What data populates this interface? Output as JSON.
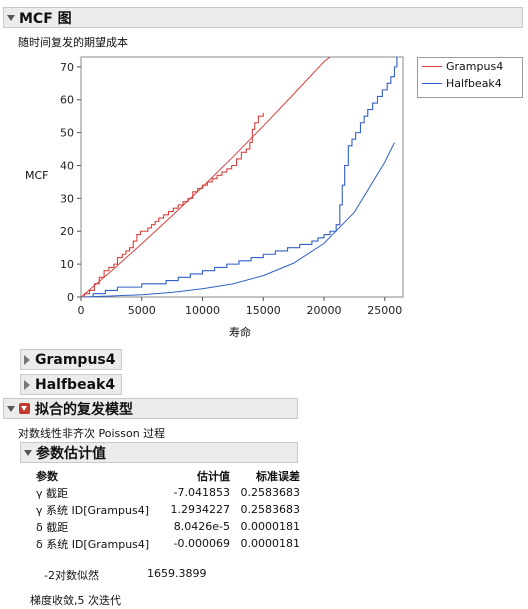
{
  "mcf_section": {
    "title": "MCF 图",
    "subtitle": "随时间复发的期望成本",
    "y_axis_label": "MCF",
    "x_axis_label": "寿命"
  },
  "legend": {
    "items": [
      {
        "label": "Grampus4",
        "color": "#d94040"
      },
      {
        "label": "Halfbeak4",
        "color": "#3060c8"
      }
    ]
  },
  "sections": {
    "grampus": "Grampus4",
    "halfbeak": "Halfbeak4",
    "fitted_model": "拟合的复发模型",
    "model_desc": "对数线性非齐次 Poisson 过程",
    "param_estimates": "参数估计值"
  },
  "param_table": {
    "headers": [
      "参数",
      "估计值",
      "标准误差"
    ],
    "rows": [
      {
        "param": "γ 截距",
        "estimate": "-7.041853",
        "stderr": "0.2583683"
      },
      {
        "param": "γ 系统 ID[Grampus4]",
        "estimate": "1.2934227",
        "stderr": "0.2583683"
      },
      {
        "param": "δ 截距",
        "estimate": "8.0426e-5",
        "stderr": "0.0000181"
      },
      {
        "param": "δ 系统 ID[Grampus4]",
        "estimate": "-0.000069",
        "stderr": "0.0000181"
      }
    ]
  },
  "loglik": {
    "label": "-2对数似然",
    "value": "1659.3899"
  },
  "convergence": "梯度收敛,5 次迭代",
  "chart_data": {
    "type": "line",
    "title": "",
    "xlabel": "寿命",
    "ylabel": "MCF",
    "xlim": [
      0,
      26500
    ],
    "ylim": [
      0,
      73
    ],
    "x_ticks": [
      0,
      5000,
      10000,
      15000,
      20000,
      25000
    ],
    "y_ticks": [
      0,
      10,
      20,
      30,
      40,
      50,
      60,
      70
    ],
    "grid": false,
    "legend_position": "right",
    "series": [
      {
        "name": "Grampus4",
        "kind": "step",
        "color": "#d94040",
        "x": [
          0,
          300,
          700,
          1100,
          1500,
          1900,
          2300,
          2700,
          3000,
          3400,
          3700,
          4000,
          4300,
          4600,
          4900,
          5200,
          5500,
          5800,
          6100,
          6400,
          6800,
          7200,
          7600,
          8000,
          8400,
          8800,
          9200,
          9600,
          10000,
          10400,
          10800,
          11200,
          11600,
          12000,
          12400,
          12800,
          13200,
          13600,
          13900,
          14100,
          14300,
          14600,
          15000
        ],
        "y": [
          0,
          1,
          2,
          4,
          6,
          8,
          9,
          10,
          12,
          13,
          14,
          15,
          17,
          19,
          20,
          20,
          21,
          22,
          23,
          24,
          25,
          26,
          27,
          28,
          29,
          30,
          32,
          33,
          34,
          35,
          36,
          37,
          38,
          39,
          40,
          42,
          44,
          45,
          47,
          51,
          53,
          55,
          56
        ]
      },
      {
        "name": "Halfbeak4",
        "kind": "step",
        "color": "#3060c8",
        "x": [
          0,
          1000,
          2000,
          3000,
          5000,
          7000,
          8000,
          9000,
          10000,
          11000,
          12000,
          13000,
          14000,
          15000,
          16000,
          17000,
          18000,
          19000,
          19500,
          20000,
          20500,
          21000,
          21300,
          21500,
          21700,
          22000,
          22300,
          22600,
          23000,
          23300,
          23600,
          24000,
          24400,
          24800,
          25200,
          25500,
          25800,
          26000
        ],
        "y": [
          0,
          1,
          2,
          3,
          4,
          5,
          6,
          7,
          8,
          9,
          10,
          11,
          12,
          13,
          14,
          15,
          16,
          17,
          18,
          19,
          20,
          22,
          28,
          34,
          40,
          46,
          48,
          50,
          53,
          55,
          57,
          59,
          61,
          63,
          65,
          67,
          70,
          73
        ]
      },
      {
        "name": "Grampus4",
        "kind": "fitted",
        "color": "#d94040",
        "x": [
          0,
          2500,
          5000,
          7500,
          10000,
          12500,
          15000,
          17500,
          20000,
          20500
        ],
        "y": [
          0,
          7.9,
          16.2,
          24.7,
          33.5,
          42.6,
          52.0,
          61.7,
          71.6,
          73
        ]
      },
      {
        "name": "Halfbeak4",
        "kind": "fitted",
        "color": "#3060c8",
        "x": [
          0,
          2500,
          5000,
          7500,
          10000,
          12500,
          15000,
          17500,
          20000,
          22500,
          25000,
          25800
        ],
        "y": [
          0,
          0.3,
          0.7,
          1.4,
          2.5,
          4.0,
          6.5,
          10.3,
          16.3,
          25.8,
          41.0,
          47.0
        ]
      }
    ]
  }
}
